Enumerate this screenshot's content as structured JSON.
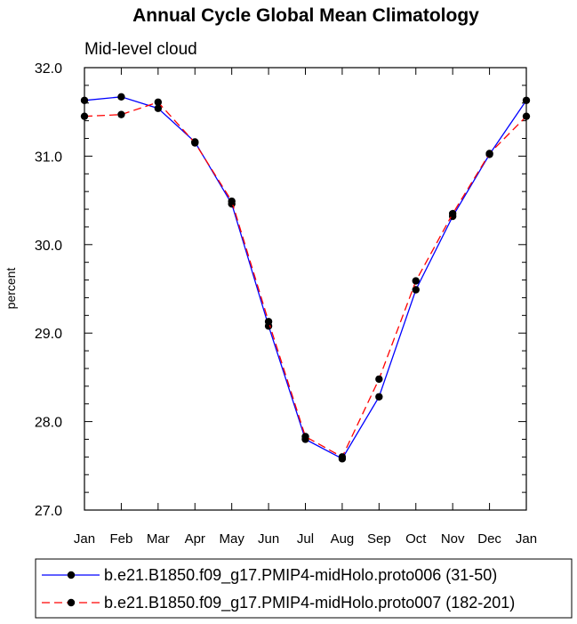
{
  "chart_data": {
    "type": "line",
    "title": "Annual Cycle Global Mean Climatology",
    "subtitle": "Mid-level cloud",
    "xlabel": "",
    "ylabel": "percent",
    "categories": [
      "Jan",
      "Feb",
      "Mar",
      "Apr",
      "May",
      "Jun",
      "Jul",
      "Aug",
      "Sep",
      "Oct",
      "Nov",
      "Dec",
      "Jan"
    ],
    "ylim": [
      27.0,
      32.0
    ],
    "yticks": [
      "27.0",
      "28.0",
      "29.0",
      "30.0",
      "31.0",
      "32.0"
    ],
    "series": [
      {
        "name": "b.e21.B1850.f09_g17.PMIP4-midHolo.proto006 (31-50)",
        "color": "#0000ff",
        "dash": "solid",
        "values": [
          31.63,
          31.67,
          31.54,
          31.16,
          30.46,
          29.08,
          27.8,
          27.58,
          28.28,
          29.49,
          30.32,
          31.02,
          31.63
        ]
      },
      {
        "name": "b.e21.B1850.f09_g17.PMIP4-midHolo.proto007 (182-201)",
        "color": "#ff0000",
        "dash": "dashed",
        "values": [
          31.45,
          31.47,
          31.61,
          31.15,
          30.49,
          29.13,
          27.83,
          27.6,
          28.48,
          29.59,
          30.35,
          31.03,
          31.45
        ]
      }
    ],
    "grid": false,
    "legend": "bottom"
  }
}
